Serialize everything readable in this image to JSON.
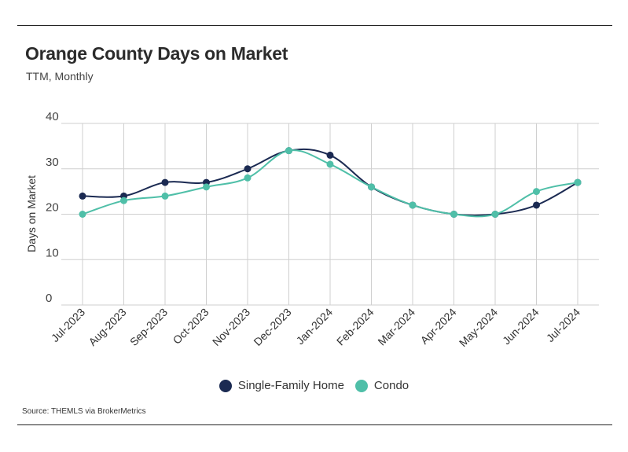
{
  "title": "Orange County Days on Market",
  "subtitle": "TTM, Monthly",
  "source": "Source:  THEMLS via BrokerMetrics",
  "chart_data": {
    "type": "line",
    "categories": [
      "Jul-2023",
      "Aug-2023",
      "Sep-2023",
      "Oct-2023",
      "Nov-2023",
      "Dec-2023",
      "Jan-2024",
      "Feb-2024",
      "Mar-2024",
      "Apr-2024",
      "May-2024",
      "Jun-2024",
      "Jul-2024"
    ],
    "series": [
      {
        "name": "Single-Family Home",
        "color": "#1b2a52",
        "values": [
          24,
          24,
          27,
          27,
          30,
          34,
          33,
          26,
          22,
          20,
          20,
          22,
          27
        ]
      },
      {
        "name": "Condo",
        "color": "#4fbfa8",
        "values": [
          20,
          23,
          24,
          26,
          28,
          34,
          31,
          26,
          22,
          20,
          20,
          25,
          27
        ]
      }
    ],
    "ylabel": "Days on Market",
    "xlabel": "",
    "ylim": [
      0,
      40
    ],
    "yticks": [
      "0",
      "10",
      "20",
      "30",
      "40"
    ],
    "grid": true,
    "legend": "bottom-center"
  }
}
